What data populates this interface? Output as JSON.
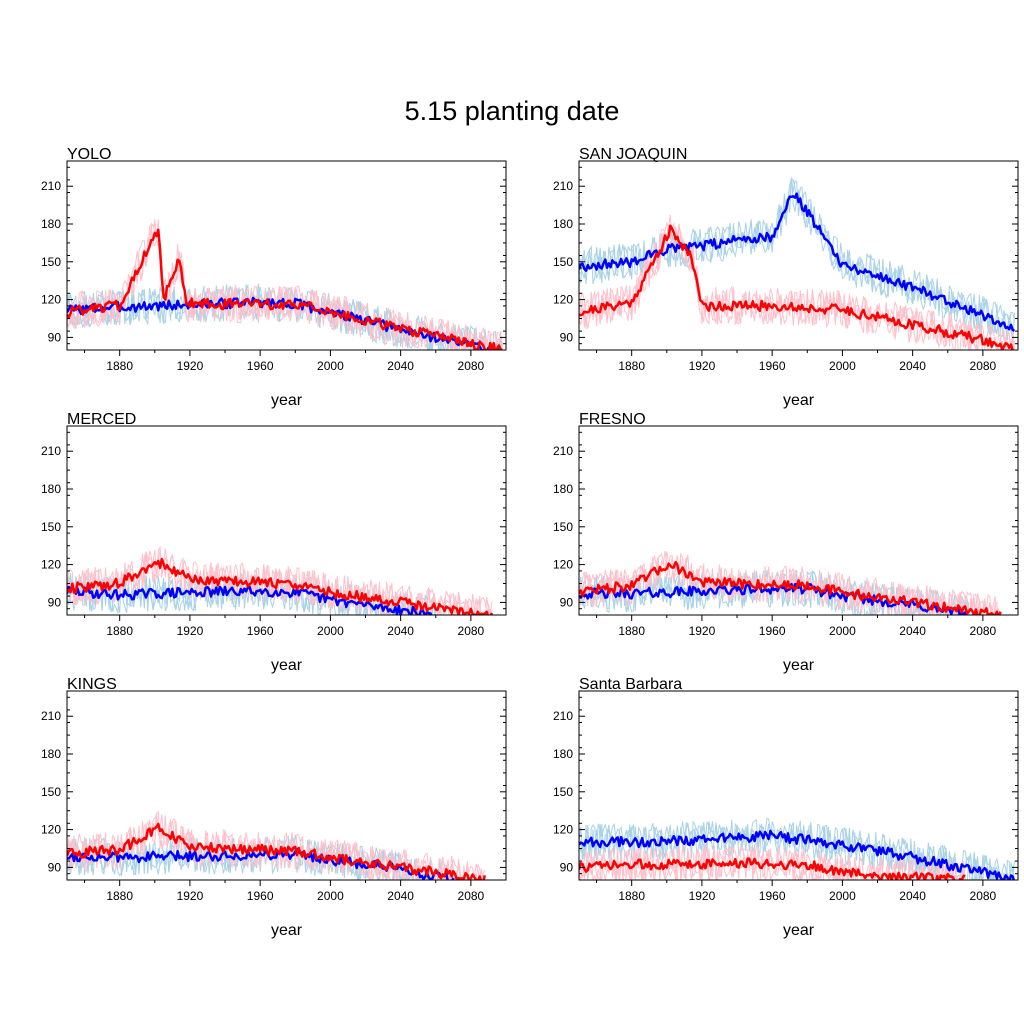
{
  "title": "5.15 planting date",
  "colors": {
    "blue_main": "#0000ff",
    "blue_light": "#a8d2e6",
    "red_main": "#ff0000",
    "red_light": "#ffc0cb"
  },
  "chart_data": [
    {
      "type": "line",
      "subtitle": "YOLO",
      "xlabel": "year",
      "ylabel": "",
      "xlim": [
        1850,
        2100
      ],
      "ylim": [
        80,
        230
      ],
      "xticks": [
        1880,
        1920,
        1960,
        2000,
        2040,
        2080
      ],
      "yticks": [
        90,
        120,
        150,
        180,
        210
      ],
      "series": [
        {
          "color": "blue",
          "x": [
            1850,
            1880,
            1920,
            1960,
            1980,
            2000,
            2040,
            2080,
            2098
          ],
          "values": [
            112,
            114,
            116,
            118,
            117,
            110,
            96,
            84,
            80
          ]
        },
        {
          "color": "red",
          "x": [
            1850,
            1880,
            1902,
            1905,
            1914,
            1918,
            1960,
            1980,
            2000,
            2040,
            2080,
            2098
          ],
          "values": [
            110,
            116,
            177,
            119,
            154,
            117,
            116,
            117,
            110,
            97,
            85,
            80
          ]
        }
      ]
    },
    {
      "type": "line",
      "subtitle": "SAN JOAQUIN",
      "xlabel": "year",
      "ylabel": "",
      "xlim": [
        1850,
        2100
      ],
      "ylim": [
        80,
        230
      ],
      "xticks": [
        1880,
        1920,
        1960,
        2000,
        2040,
        2080
      ],
      "yticks": [
        90,
        120,
        150,
        180,
        210
      ],
      "series": [
        {
          "color": "blue",
          "x": [
            1850,
            1880,
            1900,
            1920,
            1940,
            1960,
            1972,
            1990,
            2000,
            2040,
            2080,
            2098
          ],
          "values": [
            146,
            150,
            160,
            162,
            168,
            170,
            205,
            170,
            148,
            130,
            108,
            98
          ]
        },
        {
          "color": "red",
          "x": [
            1850,
            1880,
            1902,
            1914,
            1920,
            1960,
            2000,
            2040,
            2080,
            2098
          ],
          "values": [
            110,
            118,
            175,
            155,
            115,
            115,
            112,
            100,
            88,
            80
          ]
        }
      ]
    },
    {
      "type": "line",
      "subtitle": "MERCED",
      "xlabel": "year",
      "ylabel": "",
      "xlim": [
        1850,
        2100
      ],
      "ylim": [
        80,
        230
      ],
      "xticks": [
        1880,
        1920,
        1960,
        2000,
        2040,
        2080
      ],
      "yticks": [
        90,
        120,
        150,
        180,
        210
      ],
      "series": [
        {
          "color": "blue",
          "x": [
            1850,
            1880,
            1920,
            1960,
            1980,
            2000,
            2040,
            2060
          ],
          "values": [
            99,
            96,
            98,
            99,
            98,
            92,
            84,
            80
          ]
        },
        {
          "color": "red",
          "x": [
            1850,
            1880,
            1902,
            1920,
            1960,
            1980,
            2000,
            2040,
            2080,
            2092
          ],
          "values": [
            101,
            105,
            122,
            108,
            106,
            104,
            98,
            90,
            82,
            80
          ]
        }
      ]
    },
    {
      "type": "line",
      "subtitle": "FRESNO",
      "xlabel": "year",
      "ylabel": "",
      "xlim": [
        1850,
        2100
      ],
      "ylim": [
        80,
        230
      ],
      "xticks": [
        1880,
        1920,
        1960,
        2000,
        2040,
        2080
      ],
      "yticks": [
        90,
        120,
        150,
        180,
        210
      ],
      "series": [
        {
          "color": "blue",
          "x": [
            1850,
            1880,
            1920,
            1960,
            1980,
            2000,
            2040,
            2072
          ],
          "values": [
            97,
            97,
            99,
            101,
            101,
            95,
            88,
            80
          ]
        },
        {
          "color": "red",
          "x": [
            1850,
            1880,
            1902,
            1920,
            1960,
            1980,
            2000,
            2040,
            2080,
            2090
          ],
          "values": [
            99,
            103,
            121,
            106,
            104,
            104,
            98,
            90,
            82,
            80
          ]
        }
      ]
    },
    {
      "type": "line",
      "subtitle": "KINGS",
      "xlabel": "year",
      "ylabel": "",
      "xlim": [
        1850,
        2100
      ],
      "ylim": [
        80,
        230
      ],
      "xticks": [
        1880,
        1920,
        1960,
        2000,
        2040,
        2080
      ],
      "yticks": [
        90,
        120,
        150,
        180,
        210
      ],
      "series": [
        {
          "color": "blue",
          "x": [
            1850,
            1880,
            1920,
            1960,
            1980,
            2000,
            2040,
            2070
          ],
          "values": [
            99,
            98,
            99,
            100,
            101,
            96,
            88,
            80
          ]
        },
        {
          "color": "red",
          "x": [
            1850,
            1880,
            1902,
            1920,
            1960,
            1980,
            2000,
            2040,
            2080,
            2088
          ],
          "values": [
            101,
            104,
            121,
            106,
            104,
            103,
            98,
            90,
            82,
            80
          ]
        }
      ]
    },
    {
      "type": "line",
      "subtitle": "Santa Barbara",
      "xlabel": "year",
      "ylabel": "",
      "xlim": [
        1850,
        2100
      ],
      "ylim": [
        80,
        230
      ],
      "xticks": [
        1880,
        1920,
        1960,
        2000,
        2040,
        2080
      ],
      "yticks": [
        90,
        120,
        150,
        180,
        210
      ],
      "series": [
        {
          "color": "blue",
          "x": [
            1850,
            1880,
            1920,
            1960,
            2000,
            2040,
            2080,
            2098
          ],
          "values": [
            110,
            110,
            112,
            115,
            108,
            98,
            86,
            81
          ]
        },
        {
          "color": "red",
          "x": [
            1850,
            1880,
            1920,
            1960,
            1980,
            2000,
            2040,
            2070
          ],
          "values": [
            90,
            92,
            93,
            93,
            92,
            86,
            82,
            80
          ]
        }
      ]
    }
  ]
}
